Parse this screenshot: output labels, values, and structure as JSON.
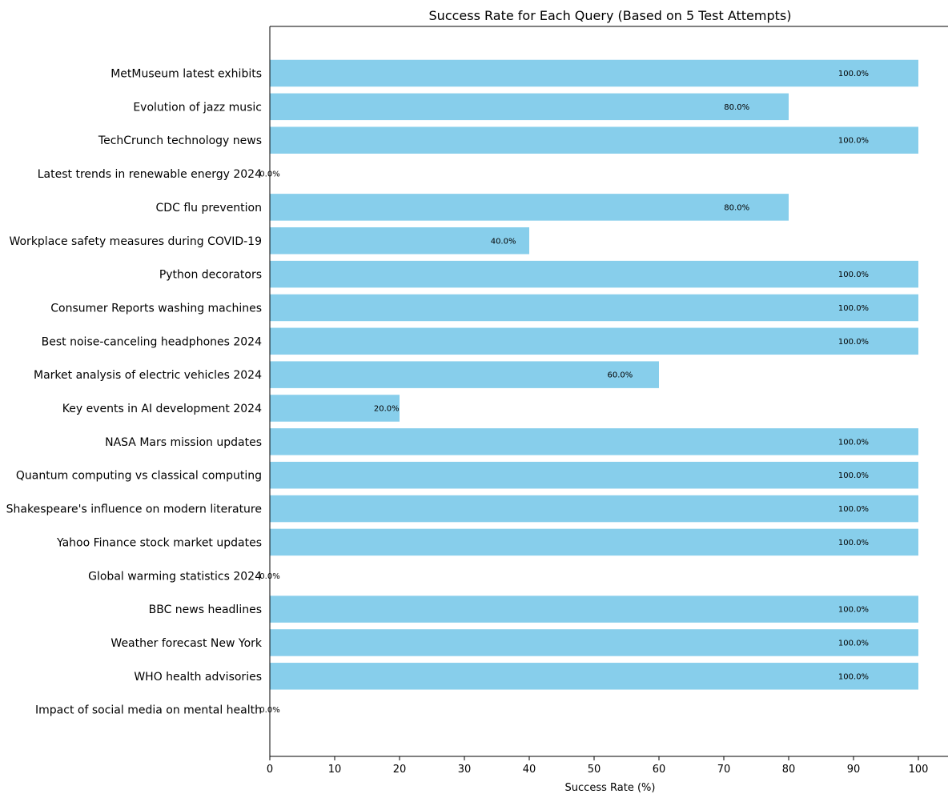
{
  "chart_data": {
    "type": "bar",
    "orientation": "horizontal",
    "title": "Success Rate for Each Query (Based on 5 Test Attempts)",
    "xlabel": "Success Rate (%)",
    "ylabel": "",
    "xlim": [
      0,
      104.5
    ],
    "xticks": [
      0,
      10,
      20,
      30,
      40,
      50,
      60,
      70,
      80,
      90,
      100
    ],
    "bar_color": "#87ceeb",
    "grid": false,
    "legend": "none",
    "categories": [
      "MetMuseum latest exhibits",
      "Evolution of jazz music",
      "TechCrunch technology news",
      "Latest trends in renewable energy 2024",
      "CDC flu prevention",
      "Workplace safety measures during COVID-19",
      "Python decorators",
      "Consumer Reports washing machines",
      "Best noise-canceling headphones 2024",
      "Market analysis of electric vehicles 2024",
      "Key events in AI development 2024",
      "NASA Mars mission updates",
      "Quantum computing vs classical computing",
      "Shakespeare's influence on modern literature",
      "Yahoo Finance stock market updates",
      "Global warming statistics 2024",
      "BBC news headlines",
      "Weather forecast New York",
      "WHO health advisories",
      "Impact of social media on mental health"
    ],
    "values": [
      100,
      80,
      100,
      0,
      80,
      40,
      100,
      100,
      100,
      60,
      20,
      100,
      100,
      100,
      100,
      0,
      100,
      100,
      100,
      0
    ],
    "value_labels": [
      "100.0%",
      "80.0%",
      "100.0%",
      "0.0%",
      "80.0%",
      "40.0%",
      "100.0%",
      "100.0%",
      "100.0%",
      "60.0%",
      "20.0%",
      "100.0%",
      "100.0%",
      "100.0%",
      "100.0%",
      "0.0%",
      "100.0%",
      "100.0%",
      "100.0%",
      "0.0%"
    ]
  }
}
